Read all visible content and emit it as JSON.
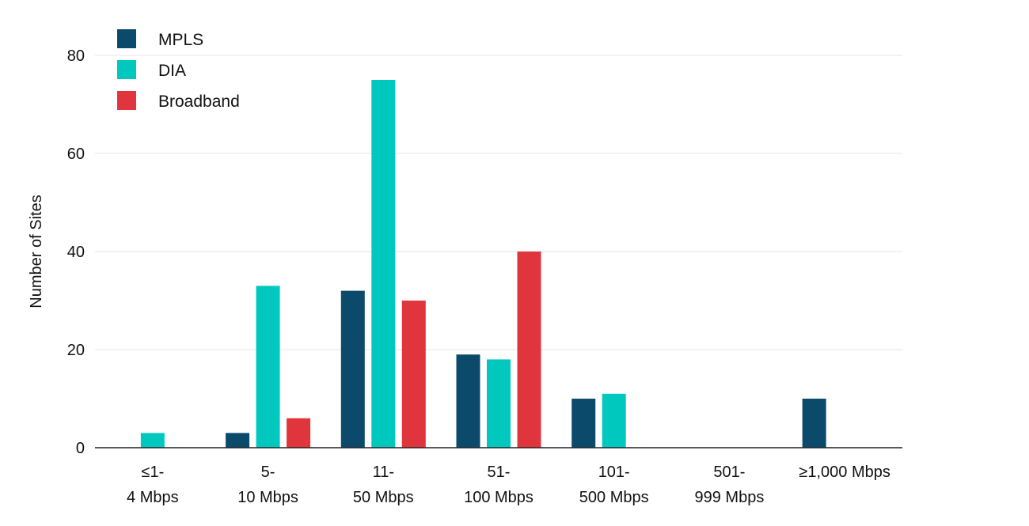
{
  "chart_data": {
    "type": "bar",
    "title": "",
    "xlabel": "",
    "ylabel": "Number of Sites",
    "ylim": [
      0,
      80
    ],
    "yticks": [
      0,
      20,
      40,
      60,
      80
    ],
    "grid": true,
    "legend_position": "top-left",
    "categories": [
      [
        "≤1-",
        "4 Mbps"
      ],
      [
        "5-",
        "10 Mbps"
      ],
      [
        "11-",
        "50 Mbps"
      ],
      [
        "51-",
        "100 Mbps"
      ],
      [
        "101-",
        "500 Mbps"
      ],
      [
        "501-",
        "999 Mbps"
      ],
      [
        "≥1,000 Mbps"
      ]
    ],
    "series": [
      {
        "name": "MPLS",
        "color": "#0b4a6b",
        "values": [
          0,
          3,
          32,
          19,
          10,
          0,
          10
        ]
      },
      {
        "name": "DIA",
        "color": "#00c8be",
        "values": [
          3,
          33,
          75,
          18,
          11,
          0,
          0
        ]
      },
      {
        "name": "Broadband",
        "color": "#e0353d",
        "values": [
          0,
          6,
          30,
          40,
          0,
          0,
          0
        ]
      }
    ]
  }
}
